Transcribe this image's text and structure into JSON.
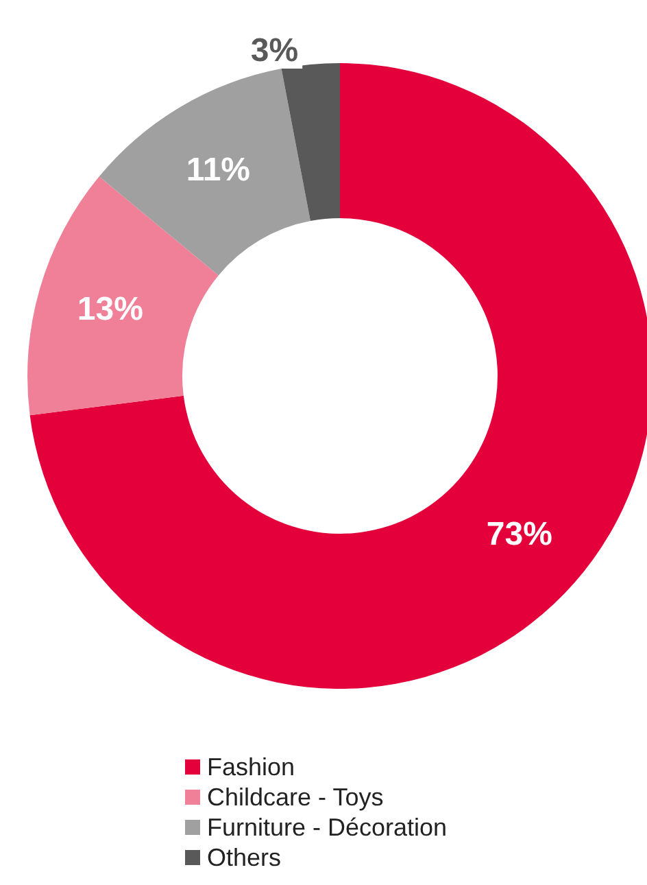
{
  "chart_data": {
    "type": "donut",
    "categories": [
      "Fashion",
      "Childcare - Toys",
      "Furniture - Décoration",
      "Others"
    ],
    "values": [
      73,
      13,
      11,
      3
    ],
    "colors": [
      "#e4003a",
      "#f08098",
      "#a0a0a0",
      "#595959"
    ],
    "value_labels": [
      "73%",
      "13%",
      "11%",
      "3%"
    ],
    "legend": "bottom"
  }
}
